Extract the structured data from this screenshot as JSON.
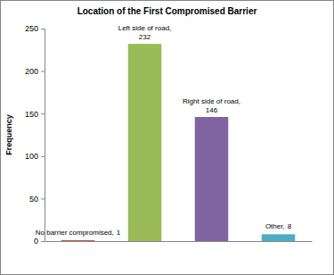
{
  "chart_data": {
    "type": "bar",
    "title": "Location of the First Compromised Barrier",
    "y_label": "Frequency",
    "categories": [
      "No barrier compromised,",
      "Left side of road,",
      "Right side of road,",
      "Other,"
    ],
    "values": [
      1,
      232,
      146,
      8
    ],
    "colors": [
      "#c0504d",
      "#9bbb59",
      "#8064a2",
      "#4bacc6"
    ],
    "ylim": [
      0,
      250
    ],
    "yticks": [
      0,
      50,
      100,
      150,
      200,
      250
    ],
    "grid": false,
    "data_labels": true,
    "tick_labels": "y"
  }
}
